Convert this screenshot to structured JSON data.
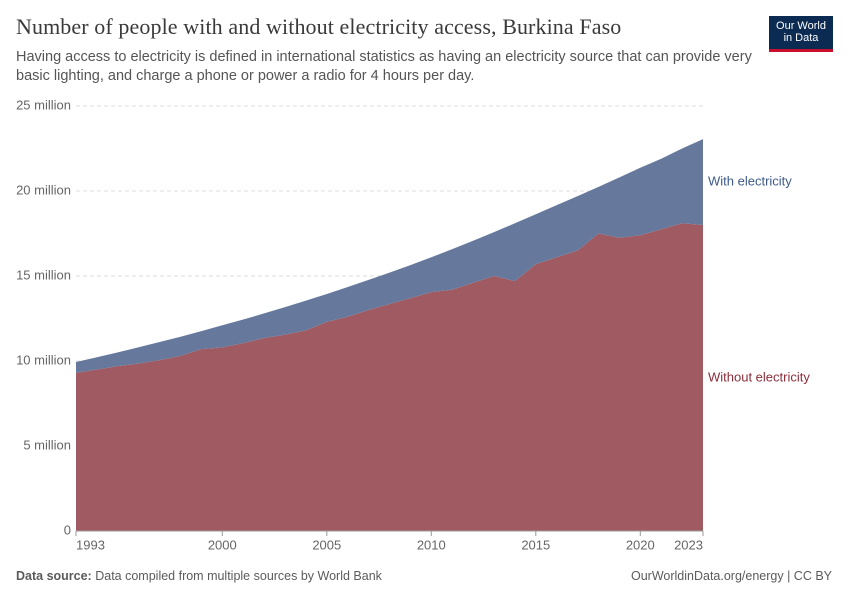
{
  "chart_data": {
    "type": "stacked_area",
    "title": "Number of people with and without electricity access, Burkina Faso",
    "subtitle": "Having access to electricity is defined in international statistics as having an electricity source that can provide very basic lighting, and charge a phone or power a radio for 4 hours per day.",
    "x": [
      1993,
      1994,
      1995,
      1996,
      1997,
      1998,
      1999,
      2000,
      2001,
      2002,
      2003,
      2004,
      2005,
      2006,
      2007,
      2008,
      2009,
      2010,
      2011,
      2012,
      2013,
      2014,
      2015,
      2016,
      2017,
      2018,
      2019,
      2020,
      2021,
      2022,
      2023
    ],
    "series": [
      {
        "name": "Without electricity",
        "color": "#a05a62",
        "label_color": "#8b2f3a",
        "values": [
          9.3,
          9.5,
          9.7,
          9.85,
          10.05,
          10.3,
          10.7,
          10.8,
          11.05,
          11.35,
          11.55,
          11.8,
          12.3,
          12.6,
          13.0,
          13.35,
          13.7,
          14.05,
          14.2,
          14.6,
          15.0,
          14.7,
          15.7,
          16.1,
          16.5,
          17.5,
          17.25,
          17.4,
          17.75,
          18.1,
          18.0
        ]
      },
      {
        "name": "With electricity",
        "color": "#66799d",
        "label_color": "#3f5a8a",
        "values": [
          0.64,
          0.72,
          0.81,
          0.96,
          1.07,
          1.13,
          1.06,
          1.3,
          1.39,
          1.45,
          1.62,
          1.75,
          1.64,
          1.75,
          1.77,
          1.85,
          1.94,
          2.05,
          2.38,
          2.47,
          2.58,
          3.4,
          2.93,
          3.07,
          3.2,
          2.74,
          3.55,
          3.97,
          4.15,
          4.4,
          5.05
        ]
      }
    ],
    "xlim": [
      1993,
      2023
    ],
    "xticks": [
      1993,
      2000,
      2005,
      2010,
      2015,
      2020,
      2023
    ],
    "ylim": [
      0,
      25
    ],
    "yticks": [
      0,
      {
        "value": 5,
        "label": "5 million"
      },
      {
        "value": 10,
        "label": "10 million"
      },
      {
        "value": 15,
        "label": "15 million"
      },
      {
        "value": 20,
        "label": "20 million"
      },
      {
        "value": 25,
        "label": "25 million"
      }
    ],
    "grid": true
  },
  "logo": {
    "line1": "Our World",
    "line2": "in Data"
  },
  "footer": {
    "source_label": "Data source:",
    "source": "Data compiled from multiple sources by World Bank",
    "url": "OurWorldinData.org/energy | CC BY"
  }
}
